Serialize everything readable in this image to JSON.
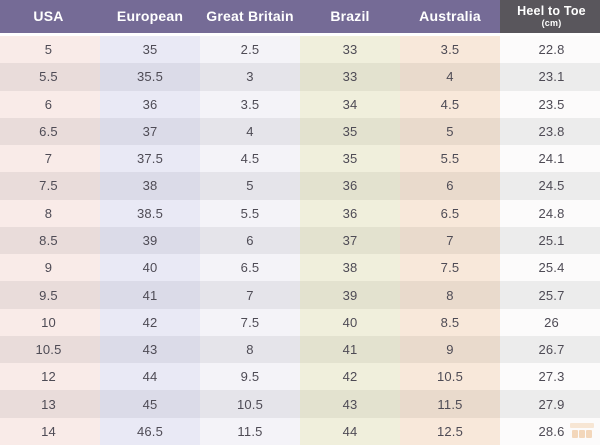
{
  "chart_data": {
    "type": "table",
    "columns": [
      {
        "key": "usa",
        "label": "USA",
        "header_bg": "#756b96"
      },
      {
        "key": "european",
        "label": "European",
        "header_bg": "#756b96"
      },
      {
        "key": "great-britain",
        "label": "Great Britain",
        "header_bg": "#756b96"
      },
      {
        "key": "brazil",
        "label": "Brazil",
        "header_bg": "#756b96"
      },
      {
        "key": "australia",
        "label": "Australia",
        "header_bg": "#756b96"
      },
      {
        "key": "heel-to-toe",
        "label": "Heel to Toe",
        "sublabel": "(cm)",
        "header_bg": "#59565c"
      }
    ],
    "rows": [
      [
        "5",
        "35",
        "2.5",
        "33",
        "3.5",
        "22.8"
      ],
      [
        "5.5",
        "35.5",
        "3",
        "33",
        "4",
        "23.1"
      ],
      [
        "6",
        "36",
        "3.5",
        "34",
        "4.5",
        "23.5"
      ],
      [
        "6.5",
        "37",
        "4",
        "35",
        "5",
        "23.8"
      ],
      [
        "7",
        "37.5",
        "4.5",
        "35",
        "5.5",
        "24.1"
      ],
      [
        "7.5",
        "38",
        "5",
        "36",
        "6",
        "24.5"
      ],
      [
        "8",
        "38.5",
        "5.5",
        "36",
        "6.5",
        "24.8"
      ],
      [
        "8.5",
        "39",
        "6",
        "37",
        "7",
        "25.1"
      ],
      [
        "9",
        "40",
        "6.5",
        "38",
        "7.5",
        "25.4"
      ],
      [
        "9.5",
        "41",
        "7",
        "39",
        "8",
        "25.7"
      ],
      [
        "10",
        "42",
        "7.5",
        "40",
        "8.5",
        "26"
      ],
      [
        "10.5",
        "43",
        "8",
        "41",
        "9",
        "26.7"
      ],
      [
        "12",
        "44",
        "9.5",
        "42",
        "10.5",
        "27.3"
      ],
      [
        "13",
        "45",
        "10.5",
        "43",
        "11.5",
        "27.9"
      ],
      [
        "14",
        "46.5",
        "11.5",
        "44",
        "12.5",
        "28.6"
      ]
    ]
  },
  "colors": {
    "header_purple": "#756b96",
    "header_dark": "#59565c",
    "header_text": "#ffffff",
    "body_text": "#4e4b55",
    "row_odd_stripe": "#ffffff",
    "row_even_stripe": "#ebebeb",
    "column_tints": {
      "usa": [
        "#f9ebe8",
        "#e9dcda"
      ],
      "european": [
        "#e9e9f5",
        "#dbdbe8"
      ],
      "great-britain": [
        "#f4f3f8",
        "#e5e4ea"
      ],
      "brazil": [
        "#f0efdc",
        "#e3e2cf"
      ],
      "australia": [
        "#f8e8da",
        "#e9dacc"
      ],
      "heel-to-toe": [
        "#fcfbfb",
        "#ececec"
      ]
    },
    "watermark_orange": "#e8a25e",
    "watermark_light": "#f2c79b"
  },
  "watermark": {
    "icon": "shop-logo-icon"
  }
}
